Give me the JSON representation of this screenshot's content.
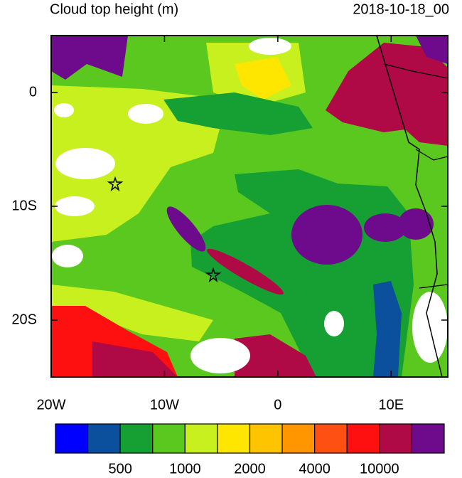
{
  "header": {
    "title": "Cloud top height (m)",
    "date": "2018-10-18_00"
  },
  "map": {
    "lonlim": [
      -20,
      15
    ],
    "latlim": [
      -25,
      5
    ],
    "lon_ticks": [
      {
        "value": -20,
        "label": "20W"
      },
      {
        "value": -10,
        "label": "10W"
      },
      0,
      {
        "value": 10,
        "label": "10E"
      }
    ],
    "lat_ticks": [
      0,
      {
        "value": -10,
        "label": "10S"
      },
      {
        "value": -20,
        "label": "20S"
      }
    ]
  },
  "colorbar": {
    "colors": [
      "#0000ff",
      "#0a509c",
      "#16a034",
      "#5ac81e",
      "#c8f01e",
      "#ffe600",
      "#ffc400",
      "#ff9600",
      "#ff5014",
      "#ff1010",
      "#b00a46",
      "#6e0a8c"
    ],
    "levels": [
      null,
      500,
      null,
      1000,
      null,
      2000,
      null,
      4000,
      null,
      10000,
      null
    ]
  }
}
